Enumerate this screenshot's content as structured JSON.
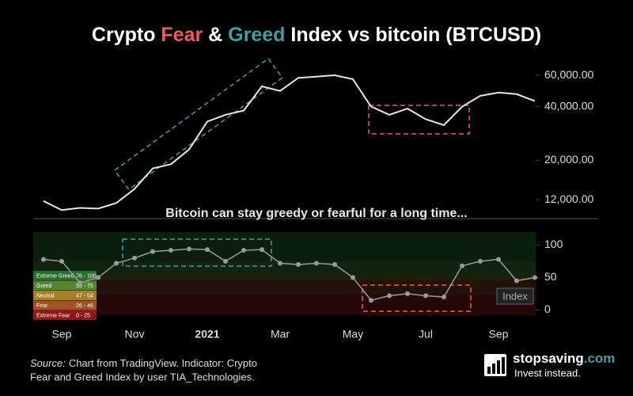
{
  "chart_data": [
    {
      "type": "line",
      "title_parts": [
        {
          "text": "Crypto ",
          "color": "#ffffff"
        },
        {
          "text": "Fear",
          "color": "#f05a5a"
        },
        {
          "text": " & ",
          "color": "#ffffff"
        },
        {
          "text": "Greed",
          "color": "#3f9ea6"
        },
        {
          "text": " Index vs bitcoin (BTCUSD)",
          "color": "#ffffff"
        }
      ],
      "annotation": "Bitcoin can stay greedy or fearful for a long time...",
      "log_scale": true,
      "ylim": [
        9500,
        70000
      ],
      "yticks": [
        {
          "value": 12000,
          "label": "12,000.00"
        },
        {
          "value": 20000,
          "label": "20,000.00"
        },
        {
          "value": 40000,
          "label": "40,000.00"
        },
        {
          "value": 60000,
          "label": "60,000.00"
        }
      ],
      "color": "#e6e6e6",
      "values": [
        11800,
        10500,
        10800,
        10700,
        11500,
        13800,
        18000,
        19000,
        23000,
        33000,
        36000,
        38000,
        52000,
        49000,
        58000,
        59000,
        60000,
        57000,
        40000,
        36000,
        39000,
        34000,
        31500,
        40000,
        46000,
        48000,
        47000,
        43000
      ]
    },
    {
      "type": "line",
      "categories": [
        null,
        "Sep",
        null,
        null,
        null,
        "Nov",
        null,
        null,
        null,
        "2021",
        null,
        null,
        null,
        "Mar",
        null,
        null,
        null,
        "May",
        null,
        null,
        null,
        "Jul",
        null,
        null,
        null,
        "Sep",
        null,
        null
      ],
      "ylim": [
        -8,
        120
      ],
      "yticks": [
        0,
        50,
        100
      ],
      "series": [
        {
          "name": "Index",
          "color": "#9a9a9a",
          "values": [
            78,
            75,
            42,
            50,
            72,
            80,
            90,
            92,
            94,
            93,
            75,
            92,
            93,
            72,
            70,
            72,
            70,
            50,
            15,
            22,
            25,
            22,
            20,
            68,
            75,
            78,
            45,
            50
          ]
        }
      ],
      "zones": [
        {
          "label": "Extreme Greed",
          "range": "76 - 100",
          "color": "#2e7d32"
        },
        {
          "label": "Greed",
          "range": "55 - 75",
          "color": "#5a9e3a"
        },
        {
          "label": "Neutral",
          "range": "47 - 54",
          "color": "#b8962a"
        },
        {
          "label": "Fear",
          "range": "26 - 46",
          "color": "#b8602a"
        },
        {
          "label": "Extreme Fear",
          "range": "0 - 25",
          "color": "#a01c1c"
        }
      ]
    }
  ],
  "source": {
    "prefix": "Source:",
    "text": "Chart from TradingView. Indicator: Crypto",
    "text2": "Fear and Greed Index by user TIA_Technologies."
  },
  "brand": {
    "name": "stopsaving",
    "suffix": ".com",
    "tagline": "Invest instead."
  }
}
